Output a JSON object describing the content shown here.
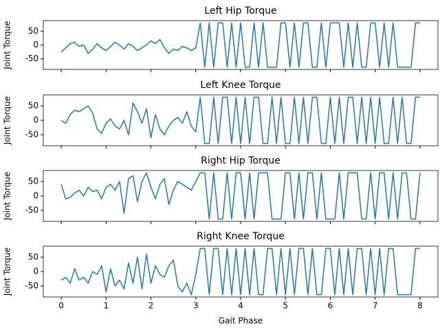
{
  "chart_data": [
    {
      "type": "line",
      "title": "Left Hip Torque",
      "ylabel": "Joint Torque",
      "color": "#1f77b4",
      "xlim": [
        -0.4,
        8.4
      ],
      "ylim": [
        -88,
        88
      ],
      "xticks": [
        0,
        1,
        2,
        3,
        4,
        5,
        6,
        7,
        8
      ],
      "yticks": [
        -50,
        0,
        50
      ],
      "x": [
        0,
        0.1,
        0.2,
        0.3,
        0.4,
        0.5,
        0.6,
        0.7,
        0.8,
        0.9,
        1,
        1.1,
        1.2,
        1.3,
        1.4,
        1.5,
        1.6,
        1.7,
        1.8,
        1.9,
        2,
        2.1,
        2.2,
        2.3,
        2.4,
        2.5,
        2.6,
        2.7,
        2.8,
        2.9,
        3,
        3.1,
        3.2,
        3.3,
        3.4,
        3.5,
        3.6,
        3.7,
        3.8,
        3.9,
        4,
        4.1,
        4.2,
        4.3,
        4.4,
        4.5,
        4.6,
        4.7,
        4.8,
        4.9,
        5,
        5.1,
        5.2,
        5.3,
        5.4,
        5.5,
        5.6,
        5.7,
        5.8,
        5.9,
        6,
        6.1,
        6.2,
        6.3,
        6.4,
        6.5,
        6.6,
        6.7,
        6.8,
        6.9,
        7,
        7.1,
        7.2,
        7.3,
        7.4,
        7.5,
        7.6,
        7.7,
        7.8,
        7.9,
        8
      ],
      "values": [
        -25,
        -10,
        5,
        10,
        -5,
        0,
        -30,
        -15,
        5,
        -10,
        -20,
        -5,
        10,
        0,
        -15,
        5,
        -5,
        -20,
        -10,
        0,
        15,
        5,
        20,
        -10,
        -30,
        -15,
        -20,
        -5,
        -10,
        -20,
        -10,
        80,
        -80,
        80,
        -80,
        80,
        80,
        -80,
        80,
        -80,
        80,
        -80,
        -80,
        80,
        -80,
        80,
        -80,
        -80,
        -80,
        80,
        80,
        -80,
        80,
        -80,
        80,
        80,
        -80,
        -80,
        80,
        -80,
        80,
        80,
        80,
        -80,
        80,
        -80,
        80,
        -80,
        -80,
        80,
        80,
        -80,
        80,
        -80,
        80,
        -80,
        -80,
        -80,
        -80,
        80,
        80
      ]
    },
    {
      "type": "line",
      "title": "Left Knee Torque",
      "ylabel": "Joint Torque",
      "color": "#1f77b4",
      "xlim": [
        -0.4,
        8.4
      ],
      "ylim": [
        -88,
        88
      ],
      "xticks": [
        0,
        1,
        2,
        3,
        4,
        5,
        6,
        7,
        8
      ],
      "yticks": [
        -50,
        0,
        50
      ],
      "x": [
        0,
        0.1,
        0.2,
        0.3,
        0.4,
        0.5,
        0.6,
        0.7,
        0.8,
        0.9,
        1,
        1.1,
        1.2,
        1.3,
        1.4,
        1.5,
        1.6,
        1.7,
        1.8,
        1.9,
        2,
        2.1,
        2.2,
        2.3,
        2.4,
        2.5,
        2.6,
        2.7,
        2.8,
        2.9,
        3,
        3.1,
        3.2,
        3.3,
        3.4,
        3.5,
        3.6,
        3.7,
        3.8,
        3.9,
        4,
        4.1,
        4.2,
        4.3,
        4.4,
        4.5,
        4.6,
        4.7,
        4.8,
        4.9,
        5,
        5.1,
        5.2,
        5.3,
        5.4,
        5.5,
        5.6,
        5.7,
        5.8,
        5.9,
        6,
        6.1,
        6.2,
        6.3,
        6.4,
        6.5,
        6.6,
        6.7,
        6.8,
        6.9,
        7,
        7.1,
        7.2,
        7.3,
        7.4,
        7.5,
        7.6,
        7.7,
        7.8,
        7.9,
        8
      ],
      "values": [
        0,
        -10,
        20,
        35,
        30,
        40,
        50,
        25,
        -30,
        -45,
        -10,
        5,
        -20,
        -30,
        0,
        -50,
        60,
        30,
        -10,
        40,
        -60,
        20,
        -30,
        -50,
        -20,
        0,
        10,
        -10,
        30,
        -20,
        -40,
        80,
        -80,
        -80,
        80,
        -80,
        80,
        80,
        -80,
        80,
        -80,
        80,
        -80,
        80,
        80,
        -80,
        -80,
        80,
        -80,
        80,
        -80,
        -80,
        80,
        -80,
        80,
        -80,
        80,
        80,
        -80,
        -80,
        80,
        -80,
        80,
        -80,
        80,
        80,
        -80,
        80,
        -80,
        80,
        -80,
        80,
        -80,
        -80,
        80,
        -80,
        80,
        -80,
        -80,
        80,
        80
      ]
    },
    {
      "type": "line",
      "title": "Right Hip Torque",
      "ylabel": "Joint Torque",
      "color": "#1f77b4",
      "xlim": [
        -0.4,
        8.4
      ],
      "ylim": [
        -88,
        88
      ],
      "xticks": [
        0,
        1,
        2,
        3,
        4,
        5,
        6,
        7,
        8
      ],
      "yticks": [
        -50,
        0,
        50
      ],
      "x": [
        0,
        0.1,
        0.2,
        0.3,
        0.4,
        0.5,
        0.6,
        0.7,
        0.8,
        0.9,
        1,
        1.1,
        1.2,
        1.3,
        1.4,
        1.5,
        1.6,
        1.7,
        1.8,
        1.9,
        2,
        2.1,
        2.2,
        2.3,
        2.4,
        2.5,
        2.6,
        2.7,
        2.8,
        2.9,
        3,
        3.1,
        3.2,
        3.3,
        3.4,
        3.5,
        3.6,
        3.7,
        3.8,
        3.9,
        4,
        4.1,
        4.2,
        4.3,
        4.4,
        4.5,
        4.6,
        4.7,
        4.8,
        4.9,
        5,
        5.1,
        5.2,
        5.3,
        5.4,
        5.5,
        5.6,
        5.7,
        5.8,
        5.9,
        6,
        6.1,
        6.2,
        6.3,
        6.4,
        6.5,
        6.6,
        6.7,
        6.8,
        6.9,
        7,
        7.1,
        7.2,
        7.3,
        7.4,
        7.5,
        7.6,
        7.7,
        7.8,
        7.9,
        8
      ],
      "values": [
        40,
        -10,
        -5,
        10,
        20,
        0,
        30,
        15,
        20,
        -10,
        30,
        40,
        20,
        50,
        -60,
        60,
        70,
        -20,
        50,
        80,
        30,
        -10,
        40,
        60,
        -30,
        20,
        50,
        40,
        30,
        20,
        50,
        80,
        80,
        -80,
        80,
        -80,
        -80,
        80,
        -80,
        80,
        80,
        -80,
        80,
        -80,
        80,
        80,
        80,
        -80,
        -80,
        -80,
        80,
        80,
        -80,
        80,
        -80,
        80,
        80,
        -80,
        80,
        -80,
        -80,
        -80,
        80,
        -80,
        80,
        80,
        80,
        -80,
        -80,
        80,
        -80,
        80,
        80,
        -80,
        80,
        -80,
        80,
        80,
        -80,
        -80,
        80
      ]
    },
    {
      "type": "line",
      "title": "Right Knee Torque",
      "ylabel": "Joint Torque",
      "xlabel": "Gait Phase",
      "color": "#1f77b4",
      "xlim": [
        -0.4,
        8.4
      ],
      "ylim": [
        -88,
        88
      ],
      "xticks": [
        0,
        1,
        2,
        3,
        4,
        5,
        6,
        7,
        8
      ],
      "yticks": [
        -50,
        0,
        50
      ],
      "x": [
        0,
        0.1,
        0.2,
        0.3,
        0.4,
        0.5,
        0.6,
        0.7,
        0.8,
        0.9,
        1,
        1.1,
        1.2,
        1.3,
        1.4,
        1.5,
        1.6,
        1.7,
        1.8,
        1.9,
        2,
        2.1,
        2.2,
        2.3,
        2.4,
        2.5,
        2.6,
        2.7,
        2.8,
        2.9,
        3,
        3.1,
        3.2,
        3.3,
        3.4,
        3.5,
        3.6,
        3.7,
        3.8,
        3.9,
        4,
        4.1,
        4.2,
        4.3,
        4.4,
        4.5,
        4.6,
        4.7,
        4.8,
        4.9,
        5,
        5.1,
        5.2,
        5.3,
        5.4,
        5.5,
        5.6,
        5.7,
        5.8,
        5.9,
        6,
        6.1,
        6.2,
        6.3,
        6.4,
        6.5,
        6.6,
        6.7,
        6.8,
        6.9,
        7,
        7.1,
        7.2,
        7.3,
        7.4,
        7.5,
        7.6,
        7.7,
        7.8,
        7.9,
        8
      ],
      "values": [
        -30,
        -20,
        -40,
        10,
        -30,
        -20,
        -40,
        0,
        -10,
        20,
        -70,
        10,
        -50,
        -30,
        -60,
        30,
        -40,
        50,
        -60,
        60,
        -40,
        20,
        -10,
        -20,
        20,
        40,
        -50,
        -70,
        -40,
        -80,
        -10,
        80,
        80,
        -80,
        80,
        80,
        -80,
        80,
        -80,
        80,
        -80,
        80,
        -80,
        80,
        -80,
        -80,
        80,
        80,
        -80,
        80,
        -80,
        80,
        -80,
        80,
        80,
        -80,
        80,
        -80,
        -80,
        80,
        80,
        -80,
        80,
        -80,
        80,
        -80,
        80,
        80,
        -80,
        80,
        -80,
        80,
        -80,
        80,
        80,
        -80,
        -80,
        -80,
        -80,
        80,
        80
      ]
    }
  ]
}
